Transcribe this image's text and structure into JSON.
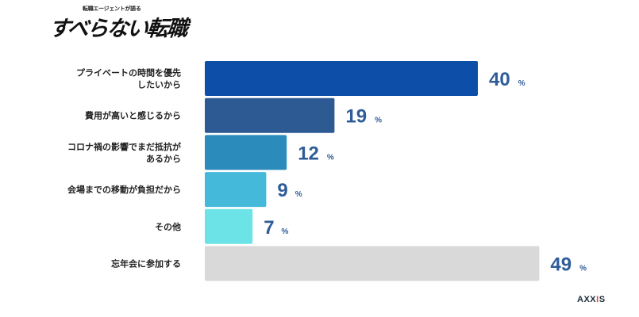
{
  "header": {
    "logo_tagline": "転職エージェントが語る",
    "logo_title": "すべらない転職"
  },
  "footer": {
    "brand_pre": "AXX",
    "brand_accent": "I",
    "brand_post": "S"
  },
  "chart_data": {
    "type": "bar",
    "orientation": "horizontal",
    "categories": [
      [
        "プライベートの時間を優先",
        "したいから"
      ],
      [
        "費用が高いと感じるから"
      ],
      [
        "コロナ禍の影響でまだ抵抗が",
        "あるから"
      ],
      [
        "会場までの移動が負担だから"
      ],
      [
        "その他"
      ],
      [
        "忘年会に参加する"
      ]
    ],
    "values": [
      40,
      19,
      12,
      9,
      7,
      49
    ],
    "unit": "%",
    "colors": [
      "#0d4fa8",
      "#2e5a94",
      "#2b8cbc",
      "#44b9d9",
      "#6ce3e6",
      "#d9d9d9"
    ],
    "value_color": "#2f5c99",
    "xlim": [
      0,
      60
    ],
    "grid": false,
    "legend": "none"
  }
}
